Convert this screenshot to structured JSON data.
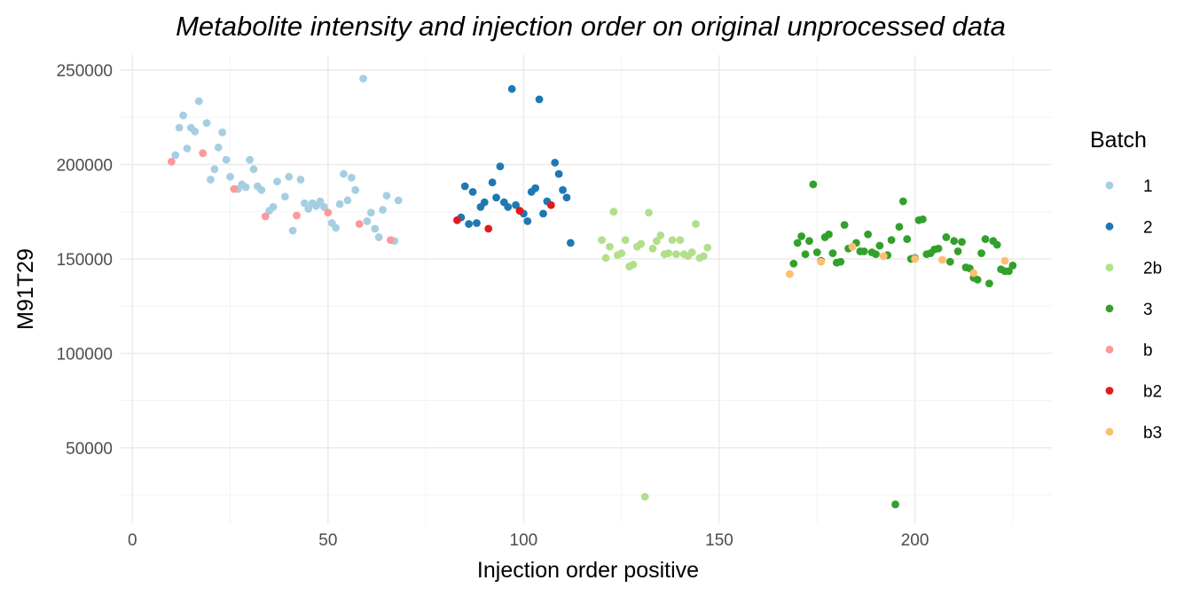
{
  "chart_data": {
    "type": "scatter",
    "title": "Metabolite intensity and injection order on original unprocessed data",
    "xlabel": "Injection order positive",
    "ylabel": "M91T29",
    "xlim": [
      -3,
      235
    ],
    "ylim": [
      10000,
      258000
    ],
    "xticks": [
      0,
      50,
      100,
      150,
      200
    ],
    "yticks": [
      50000,
      100000,
      150000,
      200000,
      250000
    ],
    "grid": true,
    "legend": {
      "title": "Batch",
      "placement": "right"
    },
    "series": [
      {
        "name": "1",
        "color": "#a6cee3",
        "points": [
          [
            11,
            205000
          ],
          [
            12,
            219500
          ],
          [
            13,
            226000
          ],
          [
            14,
            208500
          ],
          [
            15,
            219500
          ],
          [
            16,
            217500
          ],
          [
            17,
            233500
          ],
          [
            19,
            222000
          ],
          [
            20,
            192000
          ],
          [
            21,
            197500
          ],
          [
            22,
            209000
          ],
          [
            23,
            217000
          ],
          [
            24,
            202500
          ],
          [
            25,
            193500
          ],
          [
            27,
            187000
          ],
          [
            28,
            189500
          ],
          [
            29,
            188000
          ],
          [
            30,
            202500
          ],
          [
            31,
            197500
          ],
          [
            32,
            188500
          ],
          [
            33,
            186500
          ],
          [
            35,
            175500
          ],
          [
            36,
            177500
          ],
          [
            37,
            191000
          ],
          [
            39,
            183000
          ],
          [
            40,
            193500
          ],
          [
            41,
            165000
          ],
          [
            43,
            192000
          ],
          [
            44,
            179500
          ],
          [
            45,
            176500
          ],
          [
            46,
            179500
          ],
          [
            47,
            178000
          ],
          [
            48,
            180500
          ],
          [
            49,
            177500
          ],
          [
            51,
            169000
          ],
          [
            52,
            166500
          ],
          [
            53,
            179000
          ],
          [
            54,
            195000
          ],
          [
            55,
            181000
          ],
          [
            56,
            193000
          ],
          [
            57,
            186500
          ],
          [
            59,
            245500
          ],
          [
            60,
            170000
          ],
          [
            61,
            174500
          ],
          [
            62,
            166000
          ],
          [
            63,
            161500
          ],
          [
            64,
            176000
          ],
          [
            65,
            183500
          ],
          [
            67,
            159500
          ],
          [
            68,
            181000
          ]
        ]
      },
      {
        "name": "2",
        "color": "#1f78b4",
        "points": [
          [
            84,
            172000
          ],
          [
            85,
            188500
          ],
          [
            86,
            168500
          ],
          [
            87,
            185500
          ],
          [
            88,
            169000
          ],
          [
            89,
            177500
          ],
          [
            90,
            180000
          ],
          [
            92,
            190500
          ],
          [
            93,
            182500
          ],
          [
            94,
            199000
          ],
          [
            95,
            180000
          ],
          [
            96,
            177500
          ],
          [
            97,
            240000
          ],
          [
            98,
            178500
          ],
          [
            100,
            174000
          ],
          [
            101,
            170000
          ],
          [
            102,
            185500
          ],
          [
            103,
            187500
          ],
          [
            104,
            234500
          ],
          [
            105,
            174000
          ],
          [
            106,
            180500
          ],
          [
            108,
            201000
          ],
          [
            109,
            195000
          ],
          [
            110,
            186500
          ],
          [
            111,
            182500
          ],
          [
            112,
            158500
          ]
        ]
      },
      {
        "name": "2b",
        "color": "#b2df8a",
        "points": [
          [
            120,
            160000
          ],
          [
            121,
            150500
          ],
          [
            122,
            156500
          ],
          [
            123,
            175000
          ],
          [
            124,
            152000
          ],
          [
            125,
            153000
          ],
          [
            126,
            160000
          ],
          [
            127,
            146000
          ],
          [
            128,
            147000
          ],
          [
            129,
            156500
          ],
          [
            130,
            158000
          ],
          [
            131,
            24000
          ],
          [
            132,
            174500
          ],
          [
            133,
            155500
          ],
          [
            134,
            159500
          ],
          [
            135,
            162500
          ],
          [
            136,
            152500
          ],
          [
            137,
            153000
          ],
          [
            138,
            160000
          ],
          [
            139,
            152500
          ],
          [
            140,
            160000
          ],
          [
            141,
            152500
          ],
          [
            142,
            151500
          ],
          [
            143,
            153500
          ],
          [
            144,
            168500
          ],
          [
            145,
            150500
          ],
          [
            146,
            151500
          ],
          [
            147,
            156000
          ]
        ]
      },
      {
        "name": "3",
        "color": "#33a02c",
        "points": [
          [
            169,
            147500
          ],
          [
            170,
            158500
          ],
          [
            171,
            162000
          ],
          [
            172,
            152500
          ],
          [
            173,
            159500
          ],
          [
            174,
            189500
          ],
          [
            175,
            153500
          ],
          [
            176,
            149000
          ],
          [
            177,
            161500
          ],
          [
            178,
            163000
          ],
          [
            179,
            153000
          ],
          [
            180,
            148000
          ],
          [
            181,
            148500
          ],
          [
            182,
            168000
          ],
          [
            183,
            155500
          ],
          [
            185,
            158500
          ],
          [
            186,
            154000
          ],
          [
            187,
            154000
          ],
          [
            188,
            163000
          ],
          [
            189,
            153500
          ],
          [
            190,
            152500
          ],
          [
            191,
            157000
          ],
          [
            193,
            152000
          ],
          [
            194,
            160000
          ],
          [
            195,
            20000
          ],
          [
            196,
            167000
          ],
          [
            197,
            180500
          ],
          [
            198,
            160500
          ],
          [
            199,
            150000
          ],
          [
            200,
            150500
          ],
          [
            201,
            170500
          ],
          [
            202,
            171000
          ],
          [
            203,
            152500
          ],
          [
            204,
            153000
          ],
          [
            205,
            155000
          ],
          [
            206,
            155500
          ],
          [
            208,
            161500
          ],
          [
            209,
            148500
          ],
          [
            210,
            159500
          ],
          [
            211,
            154000
          ],
          [
            212,
            159000
          ],
          [
            213,
            145500
          ],
          [
            214,
            145000
          ],
          [
            215,
            140000
          ],
          [
            216,
            139000
          ],
          [
            217,
            153000
          ],
          [
            218,
            160500
          ],
          [
            219,
            137000
          ],
          [
            220,
            159500
          ],
          [
            221,
            157500
          ],
          [
            222,
            144500
          ],
          [
            223,
            143500
          ],
          [
            224,
            143500
          ],
          [
            225,
            146500
          ]
        ]
      },
      {
        "name": "b",
        "color": "#fb9a99",
        "points": [
          [
            10,
            201500
          ],
          [
            18,
            206000
          ],
          [
            26,
            187000
          ],
          [
            34,
            172500
          ],
          [
            42,
            173000
          ],
          [
            50,
            174500
          ],
          [
            58,
            168500
          ],
          [
            66,
            160000
          ]
        ]
      },
      {
        "name": "b2",
        "color": "#e31a1c",
        "points": [
          [
            83,
            170500
          ],
          [
            91,
            166000
          ],
          [
            99,
            175500
          ],
          [
            107,
            178500
          ]
        ]
      },
      {
        "name": "b3",
        "color": "#fdbf6f",
        "points": [
          [
            168,
            142000
          ],
          [
            176,
            148500
          ],
          [
            184,
            156500
          ],
          [
            192,
            151500
          ],
          [
            200,
            150000
          ],
          [
            207,
            149500
          ],
          [
            215,
            142500
          ],
          [
            223,
            149000
          ]
        ]
      }
    ]
  }
}
